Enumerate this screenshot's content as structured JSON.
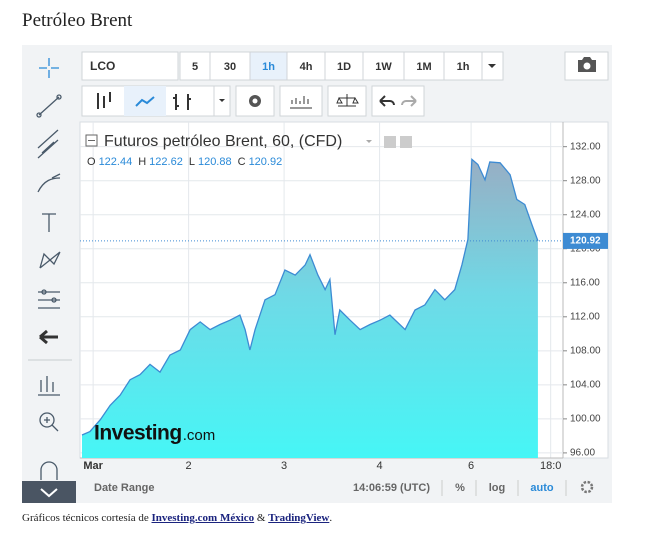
{
  "title": "Petróleo Brent",
  "toolbar": {
    "symbol": "LCO",
    "intervals": [
      "5",
      "30",
      "1h",
      "4h",
      "1D",
      "1W",
      "1M",
      "1h"
    ],
    "active_interval": 2
  },
  "chart_data": {
    "type": "area",
    "title": "Futuros petróleo Brent, 60, (CFD)",
    "ohlc": [
      {
        "label": "O",
        "value": 122.44
      },
      {
        "label": "H",
        "value": 122.62
      },
      {
        "label": "L",
        "value": 120.88
      },
      {
        "label": "C",
        "value": 120.92
      }
    ],
    "x": [
      -2.8,
      -0.8,
      1.8,
      4.3,
      6.8,
      9.3,
      11.8,
      14.3,
      16.8,
      19.3,
      21.9,
      24.4,
      26.9,
      29.4,
      31.9,
      34.4,
      36.9,
      38.2,
      39.4,
      40.7,
      43.2,
      45.7,
      48.2,
      50.8,
      53.3,
      54.5,
      56.5,
      58.3,
      59.5,
      60.8,
      62.0,
      64.6,
      67.1,
      69.6,
      72.1,
      74.6,
      78.4,
      80.9,
      83.4,
      85.9,
      88.4,
      90.9,
      92.7,
      94.2,
      95.2,
      96.7,
      98.5,
      99.7,
      102.3,
      104.8,
      106.5,
      108.5,
      110.3,
      111.8
    ],
    "values": [
      98.1,
      98.5,
      99.9,
      101.6,
      102.8,
      104.6,
      105.2,
      106.4,
      105.5,
      107.5,
      108.1,
      110.5,
      111.4,
      110.5,
      111.1,
      111.6,
      112.2,
      110.5,
      108.1,
      110.5,
      114.0,
      114.6,
      117.5,
      116.9,
      118.1,
      119.3,
      116.9,
      115.2,
      116.4,
      109.9,
      112.8,
      111.6,
      110.5,
      111.1,
      111.6,
      112.2,
      110.5,
      112.8,
      113.4,
      115.2,
      114.0,
      115.2,
      118.1,
      121.1,
      130.5,
      129.9,
      128.1,
      130.2,
      130.1,
      128.7,
      125.8,
      125.2,
      122.8,
      120.92
    ],
    "line_color": "#3d8bd3",
    "xlim": [
      -3.3,
      118.1
    ],
    "xticks": [
      {
        "value": 0,
        "label": "Mar"
      },
      {
        "value": 24,
        "label": "2"
      },
      {
        "value": 48,
        "label": "3"
      },
      {
        "value": 72,
        "label": "4"
      },
      {
        "value": 95,
        "label": "6"
      },
      {
        "value": 115,
        "label": "18:0"
      }
    ],
    "ylim": [
      95.4,
      134.9
    ],
    "yticks": [
      {
        "value": 96,
        "label": "96.00"
      },
      {
        "value": 100,
        "label": "100.00"
      },
      {
        "value": 104,
        "label": "104.00"
      },
      {
        "value": 108,
        "label": "108.00"
      },
      {
        "value": 112,
        "label": "112.00"
      },
      {
        "value": 116,
        "label": "116.00"
      },
      {
        "value": 120,
        "label": "120.00"
      },
      {
        "value": 124,
        "label": "124.00"
      },
      {
        "value": 128,
        "label": "128.00"
      },
      {
        "value": 132,
        "label": "132.00"
      }
    ],
    "grid": true,
    "watermark": [
      "Investing",
      ".com"
    ]
  },
  "bottom_bar": {
    "date_range": "Date Range",
    "time": "14:06:59 (UTC)",
    "percent": "%",
    "log": "log",
    "auto": "auto"
  },
  "footer": {
    "prefix": "Gráficos técnicos cortesía de",
    "link1": "Investing.com México",
    "amp": "&",
    "link2": "TradingView",
    "end": "."
  }
}
